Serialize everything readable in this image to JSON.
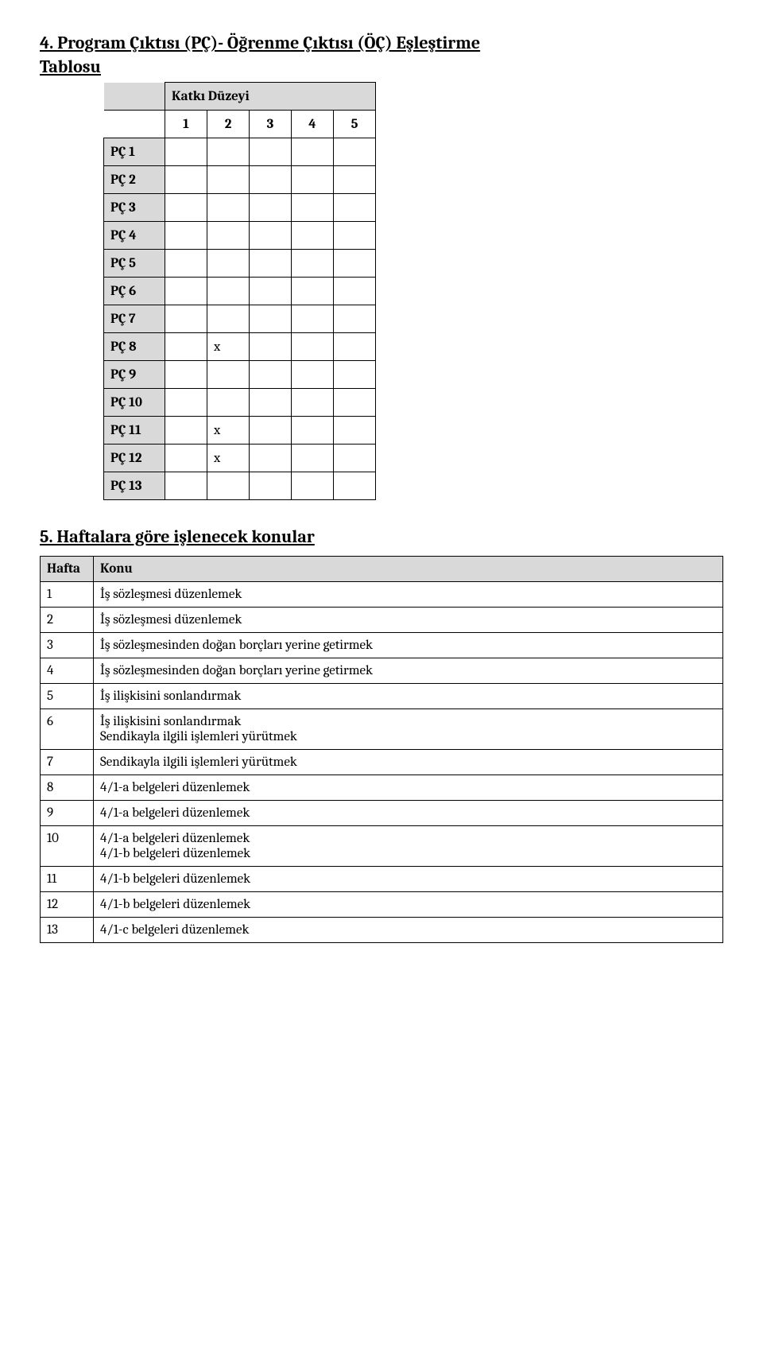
{
  "section4": {
    "heading_line1": "4. Program Çıktısı (PÇ)- Öğrenme Çıktısı (ÖÇ) Eşleştirme",
    "heading_line2": "Tablosu",
    "katki_label": "Katkı Düzeyi",
    "cols": [
      "1",
      "2",
      "3",
      "4",
      "5"
    ],
    "rows": [
      {
        "label": "PÇ 1",
        "vals": [
          "",
          "",
          "",
          "",
          ""
        ]
      },
      {
        "label": "PÇ 2",
        "vals": [
          "",
          "",
          "",
          "",
          ""
        ]
      },
      {
        "label": "PÇ 3",
        "vals": [
          "",
          "",
          "",
          "",
          ""
        ]
      },
      {
        "label": "PÇ 4",
        "vals": [
          "",
          "",
          "",
          "",
          ""
        ]
      },
      {
        "label": "PÇ 5",
        "vals": [
          "",
          "",
          "",
          "",
          ""
        ]
      },
      {
        "label": "PÇ 6",
        "vals": [
          "",
          "",
          "",
          "",
          ""
        ]
      },
      {
        "label": "PÇ 7",
        "vals": [
          "",
          "",
          "",
          "",
          ""
        ]
      },
      {
        "label": "PÇ 8",
        "vals": [
          "",
          "x",
          "",
          "",
          ""
        ]
      },
      {
        "label": "PÇ 9",
        "vals": [
          "",
          "",
          "",
          "",
          ""
        ]
      },
      {
        "label": "PÇ 10",
        "vals": [
          "",
          "",
          "",
          "",
          ""
        ]
      },
      {
        "label": "PÇ 11",
        "vals": [
          "",
          "x",
          "",
          "",
          ""
        ]
      },
      {
        "label": "PÇ 12",
        "vals": [
          "",
          "x",
          "",
          "",
          ""
        ]
      },
      {
        "label": "PÇ 13",
        "vals": [
          "",
          "",
          "",
          "",
          ""
        ]
      }
    ]
  },
  "section5": {
    "heading": "5. Haftalara göre işlenecek konular",
    "col_week": "Hafta",
    "col_topic": "Konu",
    "rows": [
      {
        "week": "1",
        "topics": [
          "İş sözleşmesi düzenlemek"
        ]
      },
      {
        "week": "2",
        "topics": [
          "İş sözleşmesi düzenlemek"
        ]
      },
      {
        "week": "3",
        "topics": [
          "İş sözleşmesinden doğan borçları yerine getirmek"
        ]
      },
      {
        "week": "4",
        "topics": [
          "İş sözleşmesinden doğan borçları yerine getirmek"
        ]
      },
      {
        "week": "5",
        "topics": [
          "İş ilişkisini sonlandırmak"
        ]
      },
      {
        "week": "6",
        "topics": [
          "İş ilişkisini sonlandırmak",
          "Sendikayla ilgili işlemleri yürütmek"
        ]
      },
      {
        "week": "7",
        "topics": [
          "Sendikayla ilgili işlemleri yürütmek"
        ]
      },
      {
        "week": "8",
        "topics": [
          "4/1-a belgeleri düzenlemek"
        ]
      },
      {
        "week": "9",
        "topics": [
          "4/1-a belgeleri düzenlemek"
        ]
      },
      {
        "week": "10",
        "topics": [
          "4/1-a belgeleri düzenlemek",
          "4/1-b belgeleri düzenlemek"
        ]
      },
      {
        "week": "11",
        "topics": [
          "4/1-b belgeleri düzenlemek"
        ]
      },
      {
        "week": "12",
        "topics": [
          "4/1-b belgeleri düzenlemek"
        ]
      },
      {
        "week": "13",
        "topics": [
          "4/1-c belgeleri düzenlemek"
        ]
      }
    ]
  }
}
